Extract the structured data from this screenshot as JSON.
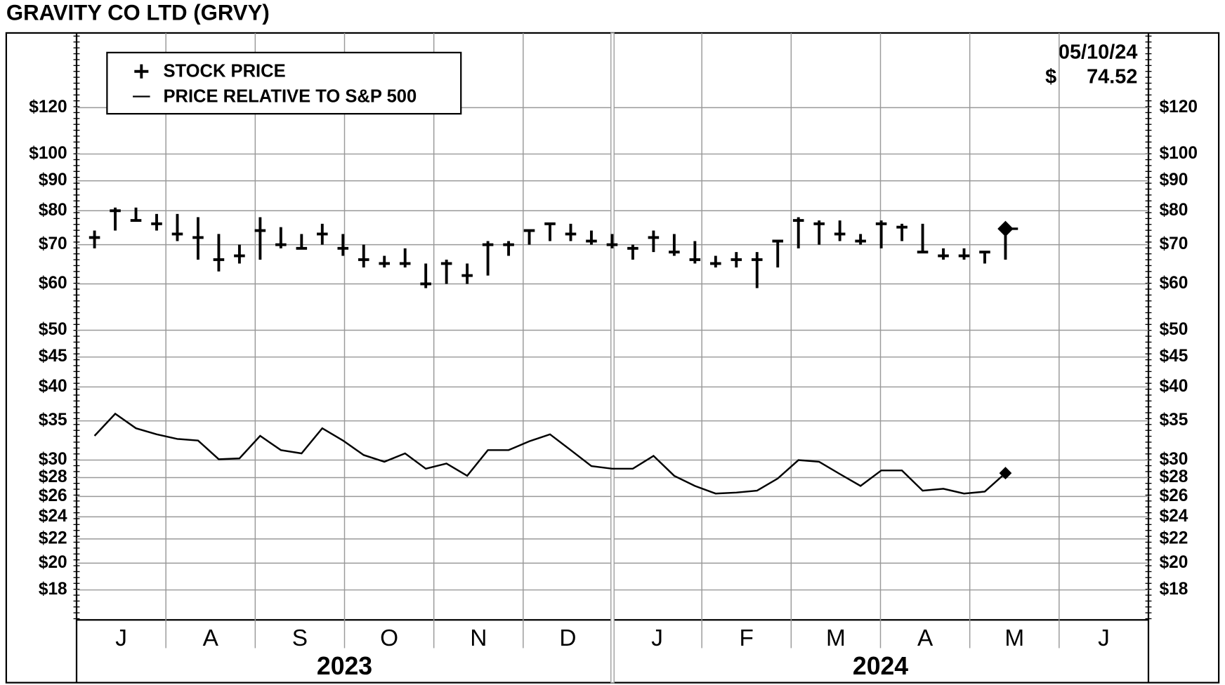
{
  "chart_data": {
    "type": "hlc",
    "title": "GRAVITY CO LTD (GRVY)",
    "date": "05/10/24",
    "currency_symbol": "$",
    "months": [
      "J",
      "A",
      "S",
      "O",
      "N",
      "D",
      "J",
      "F",
      "M",
      "A",
      "M",
      "J"
    ],
    "years": [
      "2023",
      "2024"
    ],
    "ylim": [
      16,
      161
    ],
    "log_scale": true,
    "grid": true,
    "legend": "upper left",
    "yticks": [
      {
        "value": 18,
        "label": "$18"
      },
      {
        "value": 20,
        "label": "$20"
      },
      {
        "value": 22,
        "label": "$22"
      },
      {
        "value": 24,
        "label": "$24"
      },
      {
        "value": 26,
        "label": "$26"
      },
      {
        "value": 28,
        "label": "$28"
      },
      {
        "value": 30,
        "label": "$30"
      },
      {
        "value": 35,
        "label": "$35"
      },
      {
        "value": 40,
        "label": "$40"
      },
      {
        "value": 45,
        "label": "$45"
      },
      {
        "value": 50,
        "label": "$50"
      },
      {
        "value": 60,
        "label": "$60"
      },
      {
        "value": 70,
        "label": "$70"
      },
      {
        "value": 80,
        "label": "$80"
      },
      {
        "value": 90,
        "label": "$90"
      },
      {
        "value": 100,
        "label": "$100"
      },
      {
        "value": 120,
        "label": "$120"
      }
    ],
    "series": [
      {
        "name": "STOCK PRICE",
        "color": "#000000",
        "high": [
          74,
          81,
          81,
          79,
          79,
          78,
          73,
          70,
          78,
          75,
          73,
          76,
          73,
          70,
          67,
          69,
          65,
          66,
          65,
          71,
          71,
          74,
          76,
          76,
          74,
          73,
          70,
          74,
          73,
          71,
          67,
          68,
          68,
          71,
          78,
          77,
          77,
          73,
          77,
          76,
          76,
          69,
          69,
          68,
          75
        ],
        "low": [
          69,
          74,
          77,
          74,
          71,
          66,
          63,
          65,
          66,
          69,
          69,
          70,
          67,
          64,
          64,
          64,
          59,
          60,
          60,
          62,
          67,
          70,
          71,
          71,
          70,
          69,
          66,
          68,
          67,
          65,
          64,
          64,
          59,
          64,
          69,
          70,
          71,
          70,
          69,
          71,
          68,
          66,
          66,
          65,
          66
        ],
        "close": [
          72,
          80,
          77,
          76,
          73,
          72,
          66,
          67,
          74,
          70,
          69,
          73,
          69,
          66,
          65,
          65,
          60,
          65,
          62,
          70,
          70,
          74,
          76,
          73,
          71,
          70,
          69,
          72,
          68,
          66,
          65,
          66,
          66,
          71,
          77,
          76,
          73,
          71,
          76,
          75,
          68,
          67,
          67,
          68,
          74.52
        ]
      },
      {
        "name": "PRICE RELATIVE TO S&P 500",
        "color": "#000000",
        "values": [
          33,
          36,
          34,
          33.2,
          32.6,
          32.4,
          30.1,
          30.2,
          33,
          31.2,
          30.8,
          34,
          32.4,
          30.6,
          29.8,
          30.8,
          29,
          29.6,
          28.2,
          31.2,
          31.2,
          32.3,
          33.2,
          31.2,
          29.3,
          29,
          29,
          30.5,
          28.2,
          27.1,
          26.3,
          26.4,
          26.6,
          27.9,
          30,
          29.8,
          28.4,
          27.1,
          28.8,
          28.8,
          26.6,
          26.8,
          26.3,
          26.5,
          28.5
        ]
      }
    ]
  }
}
